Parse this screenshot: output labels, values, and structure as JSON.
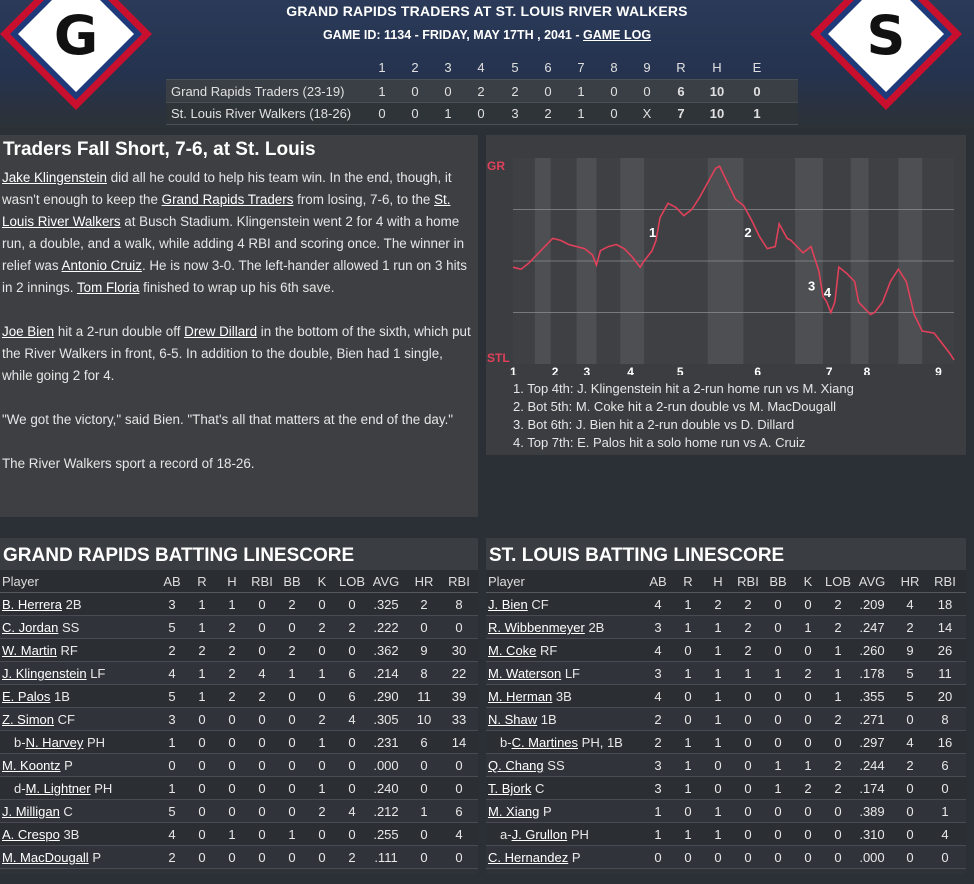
{
  "header": {
    "title": "GRAND RAPIDS TRADERS AT ST. LOUIS RIVER WALKERS",
    "subtitle_prefix": "GAME ID: 1134 - FRIDAY, MAY 17TH , 2041 - ",
    "game_log_link": "GAME LOG",
    "away_logo_letter": "G",
    "home_logo_letter": "S",
    "logo_colors": {
      "outer": "#c8102e",
      "mid": "#1f3a7a",
      "inner": "#ffffff"
    }
  },
  "linescore": {
    "columns": [
      "1",
      "2",
      "3",
      "4",
      "5",
      "6",
      "7",
      "8",
      "9",
      "R",
      "H",
      "E"
    ],
    "teams": [
      {
        "name": "Grand Rapids Traders (23-19)",
        "values": [
          "1",
          "0",
          "0",
          "2",
          "2",
          "0",
          "1",
          "0",
          "0",
          "6",
          "10",
          "0"
        ]
      },
      {
        "name": "St. Louis River Walkers (18-26)",
        "values": [
          "0",
          "0",
          "1",
          "0",
          "3",
          "2",
          "1",
          "0",
          "X",
          "7",
          "10",
          "1"
        ]
      }
    ]
  },
  "recap": {
    "title": "Traders Fall Short, 7-6, at St. Louis",
    "p1": {
      "link1": "Jake Klingenstein",
      "t1": " did all he could to help his team win. In the end, though, it wasn't enough to keep the ",
      "link2": "Grand Rapids Traders",
      "t2": " from losing, 7-6, to the ",
      "link3": "St. Louis River Walkers",
      "t3": " at Busch Stadium. Klingenstein went 2 for 4 with a home run, a double, and a walk, while adding 4 RBI and scoring once. The winner in relief was ",
      "link4": "Antonio Cruiz",
      "t4": ". He is now 3-0. The left-hander allowed 1 run on 3 hits in 2 innings. ",
      "link5": "Tom Floria",
      "t5": " finished to wrap up his 6th save."
    },
    "p2": {
      "link1": "Joe Bien",
      "t1": " hit a 2-run double off ",
      "link2": "Drew Dillard",
      "t2": " in the bottom of the sixth, which put the River Walkers in front, 6-5. In addition to the double, Bien had 1 single, while going 2 for 4."
    },
    "p3": "\"We got the victory,\" said Bien. \"That's all that matters at the end of the day.\"",
    "p4": "The River Walkers sport a record of 18-26."
  },
  "chart_data": {
    "type": "line",
    "title": "",
    "top_label": "GR",
    "bottom_label": "STL",
    "x_ticks": [
      "1",
      "2",
      "3",
      "4",
      "5",
      "6",
      "7",
      "8",
      "9"
    ],
    "ylim": [
      0,
      1
    ],
    "line_color": "#e0405a",
    "points": [
      [
        0.0,
        0.47
      ],
      [
        0.2,
        0.46
      ],
      [
        0.4,
        0.49
      ],
      [
        0.6,
        0.53
      ],
      [
        0.8,
        0.57
      ],
      [
        1.0,
        0.61
      ],
      [
        1.2,
        0.6
      ],
      [
        1.4,
        0.58
      ],
      [
        1.6,
        0.57
      ],
      [
        1.8,
        0.56
      ],
      [
        2.0,
        0.53
      ],
      [
        2.1,
        0.48
      ],
      [
        2.2,
        0.55
      ],
      [
        2.4,
        0.57
      ],
      [
        2.6,
        0.58
      ],
      [
        2.8,
        0.56
      ],
      [
        3.0,
        0.52
      ],
      [
        3.2,
        0.47
      ],
      [
        3.3,
        0.5
      ],
      [
        3.5,
        0.55
      ],
      [
        3.6,
        0.6
      ],
      [
        3.7,
        0.71
      ],
      [
        3.9,
        0.78
      ],
      [
        4.1,
        0.76
      ],
      [
        4.3,
        0.72
      ],
      [
        4.5,
        0.75
      ],
      [
        4.7,
        0.81
      ],
      [
        4.9,
        0.88
      ],
      [
        5.1,
        0.95
      ],
      [
        5.2,
        0.96
      ],
      [
        5.4,
        0.88
      ],
      [
        5.6,
        0.8
      ],
      [
        5.8,
        0.77
      ],
      [
        6.0,
        0.7
      ],
      [
        6.2,
        0.62
      ],
      [
        6.4,
        0.56
      ],
      [
        6.6,
        0.57
      ],
      [
        6.7,
        0.68
      ],
      [
        6.9,
        0.61
      ],
      [
        7.0,
        0.6
      ],
      [
        7.1,
        0.58
      ],
      [
        7.3,
        0.54
      ],
      [
        7.5,
        0.57
      ],
      [
        7.6,
        0.51
      ],
      [
        7.7,
        0.45
      ],
      [
        7.8,
        0.33
      ],
      [
        7.9,
        0.3
      ],
      [
        8.0,
        0.25
      ],
      [
        8.1,
        0.3
      ],
      [
        8.2,
        0.47
      ],
      [
        8.4,
        0.44
      ],
      [
        8.6,
        0.4
      ],
      [
        8.7,
        0.3
      ],
      [
        8.9,
        0.26
      ],
      [
        9.0,
        0.24
      ],
      [
        9.1,
        0.25
      ],
      [
        9.3,
        0.3
      ],
      [
        9.5,
        0.4
      ],
      [
        9.7,
        0.46
      ],
      [
        9.9,
        0.4
      ],
      [
        10.1,
        0.24
      ],
      [
        10.3,
        0.16
      ],
      [
        10.6,
        0.15
      ],
      [
        10.8,
        0.1
      ],
      [
        11.0,
        0.05
      ],
      [
        11.1,
        0.02
      ]
    ],
    "inning_x": [
      0,
      1.05,
      1.85,
      2.95,
      4.2,
      6.15,
      7.95,
      8.9,
      10.7
    ],
    "markers": [
      {
        "label": "1",
        "x": 3.5,
        "y": 0.64
      },
      {
        "label": "2",
        "x": 5.9,
        "y": 0.64
      },
      {
        "label": "3",
        "x": 7.5,
        "y": 0.38
      },
      {
        "label": "4",
        "x": 7.9,
        "y": 0.35
      }
    ],
    "notes": [
      "1. Top 4th: J. Klingenstein hit a 2-run home run vs M. Xiang",
      "2. Bot 5th: M. Coke hit a 2-run double vs M. MacDougall",
      "3. Bot 6th: J. Bien hit a 2-run double vs D. Dillard",
      "4. Top 7th: E. Palos hit a solo home run vs A. Cruiz"
    ]
  },
  "batting": {
    "headers": [
      "Player",
      "AB",
      "R",
      "H",
      "RBI",
      "BB",
      "K",
      "LOB",
      "AVG",
      "HR",
      "RBI"
    ],
    "gr": {
      "title": "GRAND RAPIDS BATTING LINESCORE",
      "rows": [
        {
          "prefix": "",
          "name": "B. Herrera",
          "pos": "2B",
          "stats": [
            "3",
            "1",
            "1",
            "0",
            "2",
            "0",
            "0",
            ".325",
            "2",
            "8"
          ]
        },
        {
          "prefix": "",
          "name": "C. Jordan",
          "pos": "SS",
          "stats": [
            "5",
            "1",
            "2",
            "0",
            "0",
            "2",
            "2",
            ".222",
            "0",
            "0"
          ]
        },
        {
          "prefix": "",
          "name": "W. Martin",
          "pos": "RF",
          "stats": [
            "2",
            "2",
            "2",
            "0",
            "2",
            "0",
            "0",
            ".362",
            "9",
            "30"
          ]
        },
        {
          "prefix": "",
          "name": "J. Klingenstein",
          "pos": "LF",
          "stats": [
            "4",
            "1",
            "2",
            "4",
            "1",
            "1",
            "6",
            ".214",
            "8",
            "22"
          ]
        },
        {
          "prefix": "",
          "name": "E. Palos",
          "pos": "1B",
          "stats": [
            "5",
            "1",
            "2",
            "2",
            "0",
            "0",
            "6",
            ".290",
            "11",
            "39"
          ]
        },
        {
          "prefix": "",
          "name": "Z. Simon",
          "pos": "CF",
          "stats": [
            "3",
            "0",
            "0",
            "0",
            "0",
            "2",
            "4",
            ".305",
            "10",
            "33"
          ]
        },
        {
          "prefix": "b-",
          "name": "N. Harvey",
          "pos": "PH",
          "stats": [
            "1",
            "0",
            "0",
            "0",
            "0",
            "1",
            "0",
            ".231",
            "6",
            "14"
          ]
        },
        {
          "prefix": "",
          "name": "M. Koontz",
          "pos": "P",
          "stats": [
            "0",
            "0",
            "0",
            "0",
            "0",
            "0",
            "0",
            ".000",
            "0",
            "0"
          ]
        },
        {
          "prefix": "d-",
          "name": "M. Lightner",
          "pos": "PH",
          "stats": [
            "1",
            "0",
            "0",
            "0",
            "0",
            "1",
            "0",
            ".240",
            "0",
            "0"
          ]
        },
        {
          "prefix": "",
          "name": "J. Milligan",
          "pos": "C",
          "stats": [
            "5",
            "0",
            "0",
            "0",
            "0",
            "2",
            "4",
            ".212",
            "1",
            "6"
          ]
        },
        {
          "prefix": "",
          "name": "A. Crespo",
          "pos": "3B",
          "stats": [
            "4",
            "0",
            "1",
            "0",
            "1",
            "0",
            "0",
            ".255",
            "0",
            "4"
          ]
        },
        {
          "prefix": "",
          "name": "M. MacDougall",
          "pos": "P",
          "stats": [
            "2",
            "0",
            "0",
            "0",
            "0",
            "0",
            "2",
            ".111",
            "0",
            "0"
          ]
        }
      ]
    },
    "stl": {
      "title": "ST. LOUIS BATTING LINESCORE",
      "rows": [
        {
          "prefix": "",
          "name": "J. Bien",
          "pos": "CF",
          "stats": [
            "4",
            "1",
            "2",
            "2",
            "0",
            "0",
            "2",
            ".209",
            "4",
            "18"
          ]
        },
        {
          "prefix": "",
          "name": "R. Wibbenmeyer",
          "pos": "2B",
          "stats": [
            "3",
            "1",
            "1",
            "2",
            "0",
            "1",
            "2",
            ".247",
            "2",
            "14"
          ]
        },
        {
          "prefix": "",
          "name": "M. Coke",
          "pos": "RF",
          "stats": [
            "4",
            "0",
            "1",
            "2",
            "0",
            "0",
            "1",
            ".260",
            "9",
            "26"
          ]
        },
        {
          "prefix": "",
          "name": "M. Waterson",
          "pos": "LF",
          "stats": [
            "3",
            "1",
            "1",
            "1",
            "1",
            "2",
            "1",
            ".178",
            "5",
            "11"
          ]
        },
        {
          "prefix": "",
          "name": "M. Herman",
          "pos": "3B",
          "stats": [
            "4",
            "0",
            "1",
            "0",
            "0",
            "0",
            "1",
            ".355",
            "5",
            "20"
          ]
        },
        {
          "prefix": "",
          "name": "N. Shaw",
          "pos": "1B",
          "stats": [
            "2",
            "0",
            "1",
            "0",
            "0",
            "0",
            "2",
            ".271",
            "0",
            "8"
          ]
        },
        {
          "prefix": "b-",
          "name": "C. Martines",
          "pos": "PH, 1B",
          "stats": [
            "2",
            "1",
            "1",
            "0",
            "0",
            "0",
            "0",
            ".297",
            "4",
            "16"
          ]
        },
        {
          "prefix": "",
          "name": "Q. Chang",
          "pos": "SS",
          "stats": [
            "3",
            "1",
            "0",
            "0",
            "1",
            "1",
            "2",
            ".244",
            "2",
            "6"
          ]
        },
        {
          "prefix": "",
          "name": "T. Bjork",
          "pos": "C",
          "stats": [
            "3",
            "1",
            "0",
            "0",
            "1",
            "2",
            "2",
            ".174",
            "0",
            "0"
          ]
        },
        {
          "prefix": "",
          "name": "M. Xiang",
          "pos": "P",
          "stats": [
            "1",
            "0",
            "1",
            "0",
            "0",
            "0",
            "0",
            ".389",
            "0",
            "1"
          ]
        },
        {
          "prefix": "a-",
          "name": "J. Grullon",
          "pos": "PH",
          "stats": [
            "1",
            "1",
            "1",
            "0",
            "0",
            "0",
            "0",
            ".310",
            "0",
            "4"
          ]
        },
        {
          "prefix": "",
          "name": "C. Hernandez",
          "pos": "P",
          "stats": [
            "0",
            "0",
            "0",
            "0",
            "0",
            "0",
            "0",
            ".000",
            "0",
            "0"
          ]
        }
      ]
    }
  }
}
